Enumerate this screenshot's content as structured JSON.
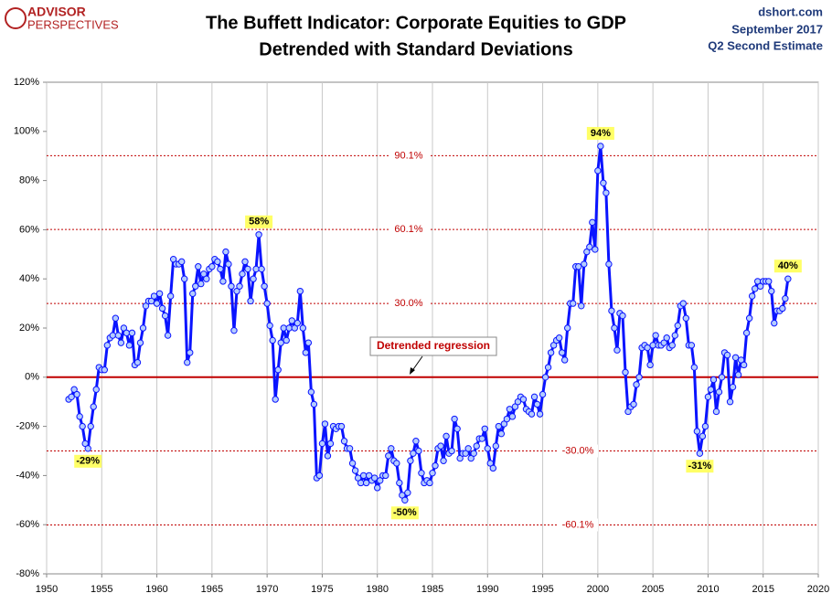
{
  "chart_data": {
    "type": "line",
    "logo": [
      "ADVISOR",
      "PERSPECTIVES"
    ],
    "title": "The Buffett Indicator: Corporate Equities to GDP",
    "subtitle": "Detrended with Standard Deviations",
    "source_lines": [
      "dshort.com",
      "September 2017",
      "Q2 Second Estimate"
    ],
    "xlim": [
      1950,
      2020
    ],
    "xticks": [
      1950,
      1955,
      1960,
      1965,
      1970,
      1975,
      1980,
      1985,
      1990,
      1995,
      2000,
      2005,
      2010,
      2015,
      2020
    ],
    "ylim": [
      -80,
      120
    ],
    "yticks": [
      {
        "value": -80,
        "label": "-80%"
      },
      {
        "value": -60,
        "label": "-60%"
      },
      {
        "value": -40,
        "label": "-40%"
      },
      {
        "value": -20,
        "label": "-20%"
      },
      {
        "value": 0,
        "label": "0%"
      },
      {
        "value": 20,
        "label": "20%"
      },
      {
        "value": 40,
        "label": "40%"
      },
      {
        "value": 60,
        "label": "60%"
      },
      {
        "value": 80,
        "label": "80%"
      },
      {
        "value": 100,
        "label": "100%"
      },
      {
        "value": 120,
        "label": "120%"
      }
    ],
    "grid": true,
    "regression_line": {
      "value": 0,
      "label": "Detrended regression",
      "color": "#c00000"
    },
    "reference_lines": [
      {
        "value": 90.1,
        "label": "90.1%"
      },
      {
        "value": 60.1,
        "label": "60.1%"
      },
      {
        "value": 30.0,
        "label": "30.0%"
      },
      {
        "value": -30.0,
        "label": "-30.0%"
      },
      {
        "value": -60.1,
        "label": "-60.1%"
      }
    ],
    "reference_color": "#c00000",
    "annotations": [
      {
        "x": 1953.75,
        "y": -29,
        "label": "-29%"
      },
      {
        "x": 1969.25,
        "y": 58,
        "label": "58%"
      },
      {
        "x": 1982.5,
        "y": -50,
        "label": "-50%"
      },
      {
        "x": 2000.25,
        "y": 94,
        "label": "94%"
      },
      {
        "x": 2009.25,
        "y": -31,
        "label": "-31%"
      },
      {
        "x": 2017.25,
        "y": 40,
        "label": "40%"
      }
    ],
    "series": [
      {
        "color": "#0a14ff",
        "marker_color": "#b4ccff",
        "x": [
          1952,
          1952.25,
          1952.5,
          1952.75,
          1953,
          1953.25,
          1953.5,
          1953.75,
          1954,
          1954.25,
          1954.5,
          1954.75,
          1955,
          1955.25,
          1955.5,
          1955.75,
          1956,
          1956.25,
          1956.5,
          1956.75,
          1957,
          1957.25,
          1957.5,
          1957.75,
          1958,
          1958.25,
          1958.5,
          1958.75,
          1959,
          1959.25,
          1959.5,
          1959.75,
          1960,
          1960.25,
          1960.5,
          1960.75,
          1961,
          1961.25,
          1961.5,
          1961.75,
          1962,
          1962.25,
          1962.5,
          1962.75,
          1963,
          1963.25,
          1963.5,
          1963.75,
          1964,
          1964.25,
          1964.5,
          1964.75,
          1965,
          1965.25,
          1965.5,
          1965.75,
          1966,
          1966.25,
          1966.5,
          1966.75,
          1967,
          1967.25,
          1967.5,
          1967.75,
          1968,
          1968.25,
          1968.5,
          1968.75,
          1969,
          1969.25,
          1969.5,
          1969.75,
          1970,
          1970.25,
          1970.5,
          1970.75,
          1971,
          1971.25,
          1971.5,
          1971.75,
          1972,
          1972.25,
          1972.5,
          1972.75,
          1973,
          1973.25,
          1973.5,
          1973.75,
          1974,
          1974.25,
          1974.5,
          1974.75,
          1975,
          1975.25,
          1975.5,
          1975.75,
          1976,
          1976.25,
          1976.5,
          1976.75,
          1977,
          1977.25,
          1977.5,
          1977.75,
          1978,
          1978.25,
          1978.5,
          1978.75,
          1979,
          1979.25,
          1979.5,
          1979.75,
          1980,
          1980.25,
          1980.5,
          1980.75,
          1981,
          1981.25,
          1981.5,
          1981.75,
          1982,
          1982.25,
          1982.5,
          1982.75,
          1983,
          1983.25,
          1983.5,
          1983.75,
          1984,
          1984.25,
          1984.5,
          1984.75,
          1985,
          1985.25,
          1985.5,
          1985.75,
          1986,
          1986.25,
          1986.5,
          1986.75,
          1987,
          1987.25,
          1987.5,
          1987.75,
          1988,
          1988.25,
          1988.5,
          1988.75,
          1989,
          1989.25,
          1989.5,
          1989.75,
          1990,
          1990.25,
          1990.5,
          1990.75,
          1991,
          1991.25,
          1991.5,
          1991.75,
          1992,
          1992.25,
          1992.5,
          1992.75,
          1993,
          1993.25,
          1993.5,
          1993.75,
          1994,
          1994.25,
          1994.5,
          1994.75,
          1995,
          1995.25,
          1995.5,
          1995.75,
          1996,
          1996.25,
          1996.5,
          1996.75,
          1997,
          1997.25,
          1997.5,
          1997.75,
          1998,
          1998.25,
          1998.5,
          1998.75,
          1999,
          1999.25,
          1999.5,
          1999.75,
          2000,
          2000.25,
          2000.5,
          2000.75,
          2001,
          2001.25,
          2001.5,
          2001.75,
          2002,
          2002.25,
          2002.5,
          2002.75,
          2003,
          2003.25,
          2003.5,
          2003.75,
          2004,
          2004.25,
          2004.5,
          2004.75,
          2005,
          2005.25,
          2005.5,
          2005.75,
          2006,
          2006.25,
          2006.5,
          2006.75,
          2007,
          2007.25,
          2007.5,
          2007.75,
          2008,
          2008.25,
          2008.5,
          2008.75,
          2009,
          2009.25,
          2009.5,
          2009.75,
          2010,
          2010.25,
          2010.5,
          2010.75,
          2011,
          2011.25,
          2011.5,
          2011.75,
          2012,
          2012.25,
          2012.5,
          2012.75,
          2013,
          2013.25,
          2013.5,
          2013.75,
          2014,
          2014.25,
          2014.5,
          2014.75,
          2015,
          2015.25,
          2015.5,
          2015.75,
          2016,
          2016.25,
          2016.5,
          2016.75,
          2017,
          2017.25
        ],
        "values": [
          -9,
          -8,
          -5,
          -7,
          -16,
          -20,
          -27,
          -29,
          -20,
          -12,
          -5,
          4,
          3,
          3,
          13,
          16,
          17,
          24,
          17,
          14,
          20,
          18,
          13,
          18,
          5,
          6,
          14,
          20,
          29,
          31,
          31,
          33,
          30,
          34,
          28,
          25,
          17,
          33,
          48,
          46,
          46,
          47,
          40,
          6,
          10,
          34,
          37,
          45,
          38,
          42,
          40,
          44,
          45,
          48,
          47,
          44,
          39,
          51,
          46,
          37,
          19,
          35,
          37,
          42,
          47,
          44,
          31,
          40,
          44,
          58,
          44,
          37,
          30,
          21,
          15,
          -9,
          3,
          14,
          20,
          15,
          20,
          23,
          20,
          22,
          35,
          20,
          10,
          14,
          -6,
          -11,
          -41,
          -40,
          -27,
          -19,
          -32,
          -27,
          -20,
          -21,
          -20,
          -20,
          -26,
          -29,
          -29,
          -35,
          -38,
          -41,
          -43,
          -40,
          -43,
          -40,
          -42,
          -41,
          -45,
          -42,
          -40,
          -40,
          -32,
          -29,
          -34,
          -35,
          -43,
          -48,
          -50,
          -47,
          -34,
          -31,
          -26,
          -30,
          -39,
          -43,
          -42,
          -43,
          -39,
          -36,
          -29,
          -28,
          -34,
          -24,
          -31,
          -30,
          -17,
          -21,
          -33,
          -31,
          -31,
          -29,
          -33,
          -31,
          -28,
          -25,
          -25,
          -21,
          -29,
          -35,
          -37,
          -28,
          -20,
          -23,
          -19,
          -17,
          -13,
          -16,
          -12,
          -10,
          -8,
          -9,
          -13,
          -14,
          -15,
          -8,
          -11,
          -15,
          -7,
          0,
          4,
          10,
          13,
          15,
          16,
          10,
          7,
          20,
          30,
          30,
          45,
          45,
          29,
          46,
          51,
          53,
          63,
          52,
          84,
          94,
          79,
          75,
          46,
          27,
          20,
          11,
          26,
          25,
          2,
          -14,
          -12,
          -11,
          -3,
          0,
          12,
          13,
          12,
          5,
          13,
          17,
          13,
          13,
          14,
          16,
          12,
          13,
          17,
          21,
          29,
          30,
          24,
          13,
          13,
          4,
          -22,
          -31,
          -24,
          -20,
          -8,
          -5,
          -1,
          -14,
          -6,
          0,
          10,
          9,
          -10,
          -4,
          8,
          1,
          7,
          5,
          18,
          24,
          33,
          36,
          39,
          37,
          39,
          39,
          39,
          35,
          22,
          27,
          27,
          28,
          32,
          40
        ]
      }
    ]
  }
}
